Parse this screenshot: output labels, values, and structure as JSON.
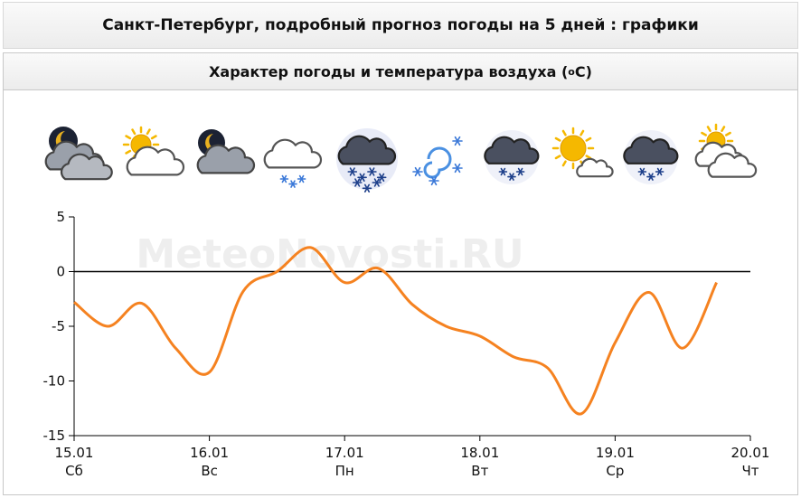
{
  "page_title": "Санкт-Петербург, подробный прогноз погоды на 5 дней : графики",
  "panel": {
    "title_prefix": "Характер погоды и температура воздуха (",
    "title_degree": "o",
    "title_suffix": "C)"
  },
  "watermark": "MeteoNovosti.RU",
  "weather_icons": [
    "night-partly-cloudy-icon",
    "sun-behind-cloud-icon",
    "moon-behind-cloud-icon",
    "cloud-light-snow-icon",
    "dark-cloud-heavy-snow-icon",
    "blizzard-icon",
    "dark-cloud-snow-icon",
    "sun-small-cloud-icon",
    "dark-cloud-snow-icon",
    "sun-behind-clouds-icon"
  ],
  "colors": {
    "line": "#f58220",
    "zero_line": "#000000",
    "axis": "#000000",
    "watermark": "#eeeeee",
    "snow": "#3a78d8",
    "sun": "#f5b800",
    "moon": "#e8b020",
    "dark_cloud": "#4a5060"
  },
  "chart_data": {
    "type": "line",
    "title": "Характер погоды и температура воздуха (oC)",
    "xlabel": "",
    "ylabel": "",
    "ylim": [
      -15,
      5
    ],
    "yticks": [
      5,
      0,
      -5,
      -10,
      -15
    ],
    "xlim": [
      0,
      5
    ],
    "x_ticks": [
      {
        "x": 0,
        "date": "15.01",
        "day": "Сб"
      },
      {
        "x": 1,
        "date": "16.01",
        "day": "Вс"
      },
      {
        "x": 2,
        "date": "17.01",
        "day": "Пн"
      },
      {
        "x": 3,
        "date": "18.01",
        "day": "Вт"
      },
      {
        "x": 4,
        "date": "19.01",
        "day": "Ср"
      },
      {
        "x": 5,
        "date": "20.01",
        "day": "Чт"
      }
    ],
    "grid": false,
    "series": [
      {
        "points": [
          [
            0,
            -2.8
          ],
          [
            0.25,
            -5.0
          ],
          [
            0.5,
            -2.9
          ],
          [
            0.75,
            -7.0
          ],
          [
            1.0,
            -9.2
          ],
          [
            1.25,
            -1.8
          ],
          [
            1.5,
            0.0
          ],
          [
            1.75,
            2.2
          ],
          [
            2.0,
            -1.0
          ],
          [
            2.25,
            0.3
          ],
          [
            2.5,
            -3.0
          ],
          [
            2.75,
            -5.0
          ],
          [
            3.0,
            -5.9
          ],
          [
            3.25,
            -7.8
          ],
          [
            3.5,
            -8.8
          ],
          [
            3.75,
            -13.0
          ],
          [
            4.0,
            -6.5
          ],
          [
            4.25,
            -1.9
          ],
          [
            4.5,
            -7.0
          ],
          [
            4.75,
            -1.0
          ]
        ]
      }
    ]
  }
}
